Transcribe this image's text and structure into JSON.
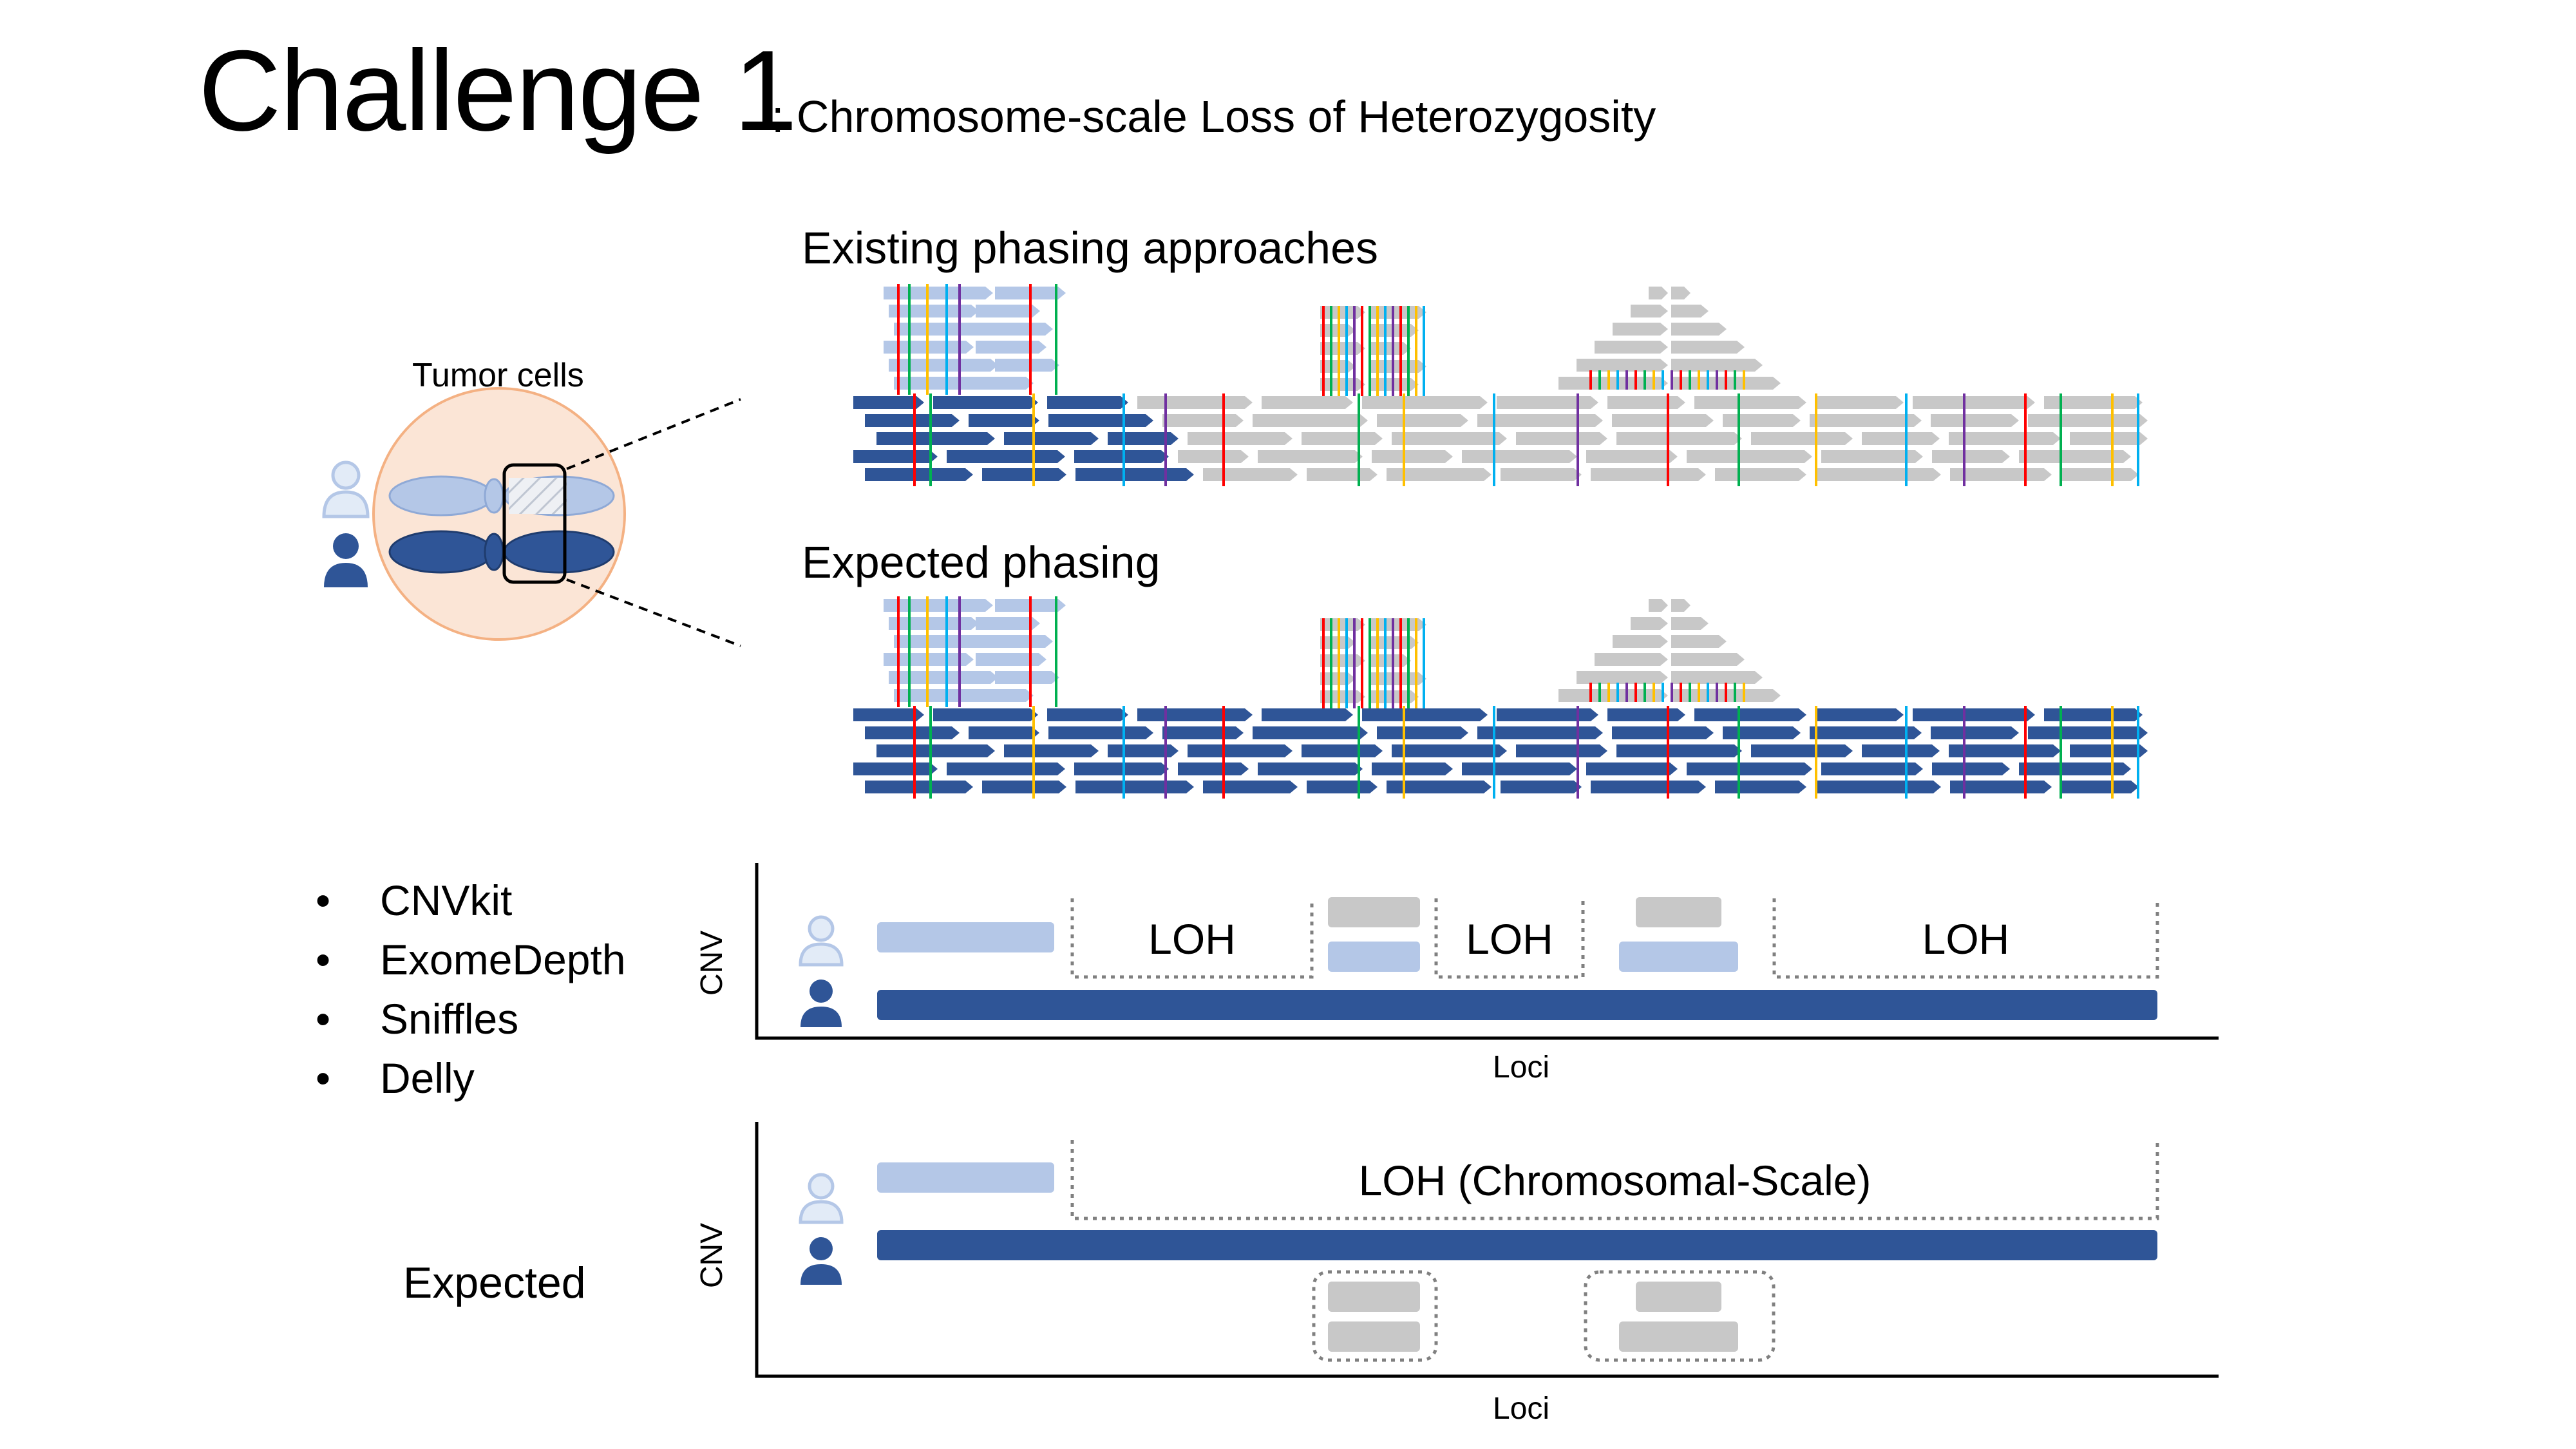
{
  "header": {
    "title": "Challenge 1",
    "subtitle": ": Chromosome-scale Loss of Heterozygosity"
  },
  "cell": {
    "label": "Tumor cells"
  },
  "sections": {
    "existing_title": "Existing phasing approaches",
    "expected_title": "Expected phasing"
  },
  "tools": [
    {
      "bullet": "•",
      "name": "CNVkit"
    },
    {
      "bullet": "•",
      "name": "ExomeDepth"
    },
    {
      "bullet": "•",
      "name": "Sniffles"
    },
    {
      "bullet": "•",
      "name": "Delly"
    }
  ],
  "expected_label": "Expected",
  "cnv_plot_tools": {
    "ylabel": "CNV",
    "xlabel": "Loci",
    "loh_labels": [
      "LOH",
      "LOH",
      "LOH"
    ]
  },
  "cnv_plot_expected": {
    "ylabel": "CNV",
    "xlabel": "Loci",
    "loh_label": "LOH (Chromosomal-Scale)"
  },
  "colors": {
    "maternal": "#b4c7e7",
    "paternal": "#2f5597",
    "unphased": "#c8c8c8",
    "cell_fill": "#fbe5d6",
    "cell_stroke": "#f4b183"
  },
  "icons": {
    "maternal": "female-person-icon",
    "paternal": "male-person-icon"
  }
}
